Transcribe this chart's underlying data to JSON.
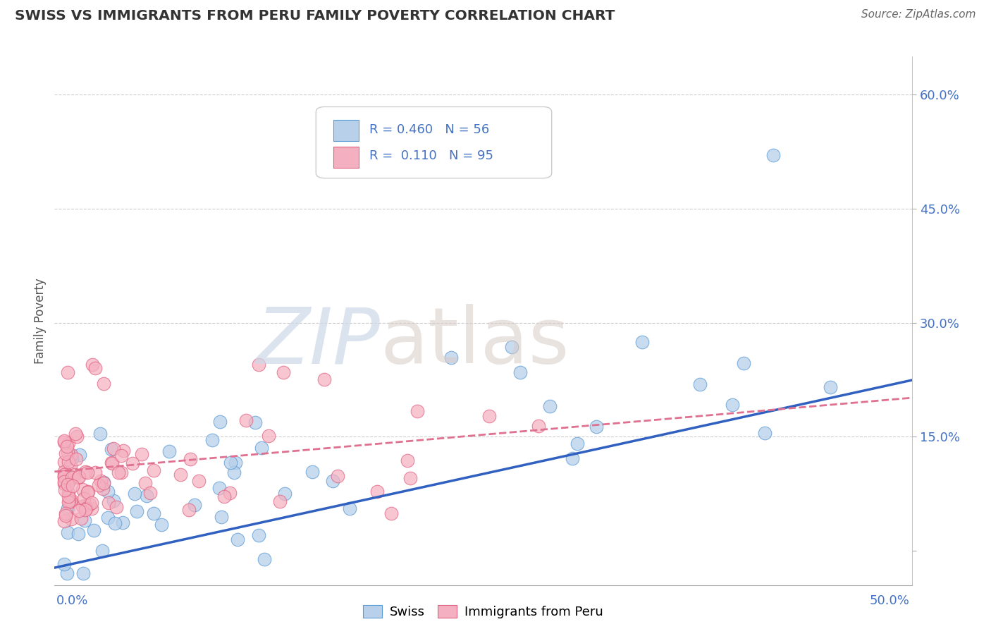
{
  "title": "SWISS VS IMMIGRANTS FROM PERU FAMILY POVERTY CORRELATION CHART",
  "source": "Source: ZipAtlas.com",
  "ylabel": "Family Poverty",
  "ytick_vals": [
    0.0,
    0.15,
    0.3,
    0.45,
    0.6
  ],
  "ytick_labels": [
    "",
    "15.0%",
    "30.0%",
    "45.0%",
    "60.0%"
  ],
  "xlim": [
    -0.005,
    0.52
  ],
  "ylim": [
    -0.045,
    0.65
  ],
  "color_swiss_fill": "#b8d0ea",
  "color_swiss_edge": "#5b9bd5",
  "color_peru_fill": "#f4b0c0",
  "color_peru_edge": "#e06080",
  "color_line_swiss": "#3060c0",
  "color_line_peru": "#e07090",
  "color_tick_label": "#4472c4",
  "color_grid": "#cccccc",
  "watermark_zip_color": "#ccd8e8",
  "watermark_atlas_color": "#d8ccc8"
}
